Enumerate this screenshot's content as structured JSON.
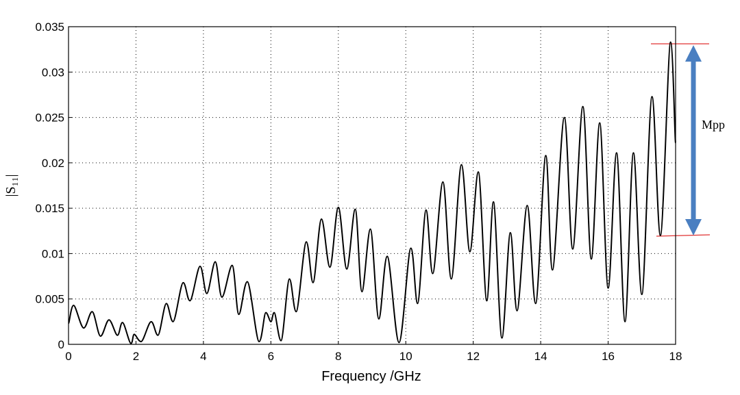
{
  "chart_data": {
    "type": "line",
    "xlabel": "Frequency /GHz",
    "ylabel": "|S₁₁|",
    "annotation": "Mpp",
    "x": [
      0,
      0.15,
      0.45,
      0.7,
      0.95,
      1.2,
      1.45,
      1.6,
      1.85,
      1.95,
      2.15,
      2.45,
      2.65,
      2.9,
      3.1,
      3.4,
      3.6,
      3.9,
      4.1,
      4.35,
      4.55,
      4.85,
      5.05,
      5.3,
      5.65,
      5.85,
      6.0,
      6.1,
      6.3,
      6.55,
      6.75,
      7.05,
      7.25,
      7.5,
      7.75,
      8.0,
      8.25,
      8.5,
      8.7,
      8.95,
      9.2,
      9.45,
      9.8,
      10.15,
      10.35,
      10.6,
      10.8,
      11.1,
      11.35,
      11.65,
      11.9,
      12.15,
      12.4,
      12.6,
      12.85,
      13.1,
      13.3,
      13.6,
      13.85,
      14.15,
      14.35,
      14.7,
      14.95,
      15.25,
      15.5,
      15.75,
      16.0,
      16.25,
      16.5,
      16.75,
      17.0,
      17.3,
      17.55,
      17.85,
      18.0
    ],
    "series": [
      {
        "name": "S11",
        "color": "#000000",
        "values": [
          0.0023,
          0.0043,
          0.0018,
          0.0036,
          0.0009,
          0.0027,
          0.001,
          0.0024,
          0.0001,
          0.0011,
          0.0003,
          0.0025,
          0.001,
          0.0045,
          0.0025,
          0.0068,
          0.0048,
          0.0086,
          0.0056,
          0.0091,
          0.0052,
          0.0087,
          0.0033,
          0.0069,
          0.0003,
          0.0035,
          0.0025,
          0.0035,
          0.0004,
          0.0072,
          0.0036,
          0.0113,
          0.0068,
          0.0138,
          0.0085,
          0.0151,
          0.0083,
          0.0149,
          0.0058,
          0.0127,
          0.0028,
          0.0097,
          0.0002,
          0.0106,
          0.0045,
          0.0148,
          0.0078,
          0.0179,
          0.0072,
          0.0198,
          0.0102,
          0.019,
          0.0048,
          0.0157,
          0.0007,
          0.0123,
          0.0037,
          0.0153,
          0.0045,
          0.0208,
          0.0082,
          0.025,
          0.0105,
          0.0262,
          0.0094,
          0.0244,
          0.0062,
          0.0211,
          0.0025,
          0.0211,
          0.0055,
          0.0273,
          0.012,
          0.0333,
          0.0222
        ]
      }
    ],
    "xlim": [
      0,
      18
    ],
    "xticks": [
      0,
      2,
      4,
      6,
      8,
      10,
      12,
      14,
      16,
      18
    ],
    "ylim": [
      0,
      0.035
    ],
    "yticks": [
      0,
      0.005,
      0.01,
      0.015,
      0.02,
      0.025,
      0.03,
      0.035
    ],
    "grid": true
  }
}
